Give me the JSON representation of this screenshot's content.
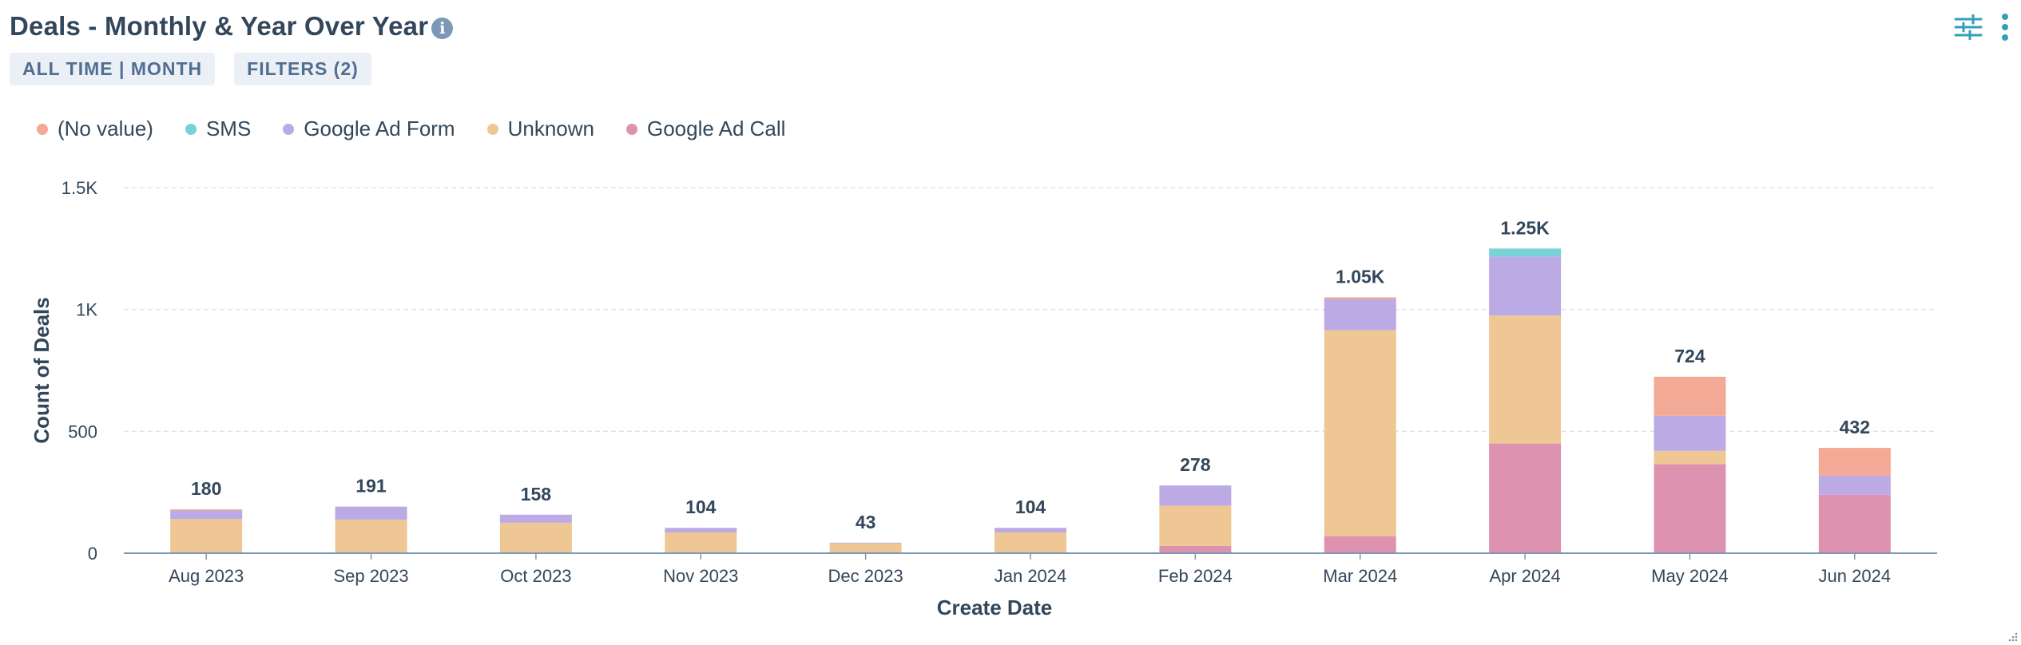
{
  "header": {
    "title": "Deals - Monthly & Year Over Year",
    "info_icon": "info-icon"
  },
  "pills": {
    "date_range": "ALL TIME | MONTH",
    "filters": "FILTERS (2)"
  },
  "icons": {
    "settings": "sliders-icon",
    "more": "vertical-ellipsis-icon",
    "accent": "#33a0b8"
  },
  "chart_data": {
    "type": "bar",
    "stacked": true,
    "xlabel": "Create Date",
    "ylabel": "Count of Deals",
    "ylim": [
      0,
      1500
    ],
    "yticks": [
      0,
      500,
      1000,
      1500
    ],
    "ytick_labels": [
      "0",
      "500",
      "1K",
      "1.5K"
    ],
    "grid": true,
    "legend_position": "top-left",
    "categories": [
      "Aug 2023",
      "Sep 2023",
      "Oct 2023",
      "Nov 2023",
      "Dec 2023",
      "Jan 2024",
      "Feb 2024",
      "Mar 2024",
      "Apr 2024",
      "May 2024",
      "Jun 2024"
    ],
    "totals": [
      "180",
      "191",
      "158",
      "104",
      "43",
      "104",
      "278",
      "1.05K",
      "1.25K",
      "724",
      "432"
    ],
    "series": [
      {
        "name": "Google Ad Call",
        "color": "#dd92b0",
        "values": [
          0,
          0,
          0,
          0,
          0,
          0,
          30,
          70,
          450,
          365,
          240
        ]
      },
      {
        "name": "Unknown",
        "color": "#efc794",
        "values": [
          140,
          138,
          125,
          85,
          40,
          85,
          165,
          845,
          525,
          55,
          0
        ]
      },
      {
        "name": "Google Ad Form",
        "color": "#bcaae4",
        "values": [
          35,
          53,
          33,
          19,
          3,
          19,
          83,
          128,
          242,
          144,
          78
        ]
      },
      {
        "name": "SMS",
        "color": "#79d2d8",
        "values": [
          0,
          0,
          0,
          0,
          0,
          0,
          0,
          0,
          33,
          0,
          0
        ]
      },
      {
        "name": "(No value)",
        "color": "#f2a995",
        "values": [
          5,
          0,
          0,
          0,
          0,
          0,
          0,
          7,
          0,
          160,
          114
        ]
      }
    ],
    "legend_order": [
      "(No value)",
      "SMS",
      "Google Ad Form",
      "Unknown",
      "Google Ad Call"
    ]
  }
}
